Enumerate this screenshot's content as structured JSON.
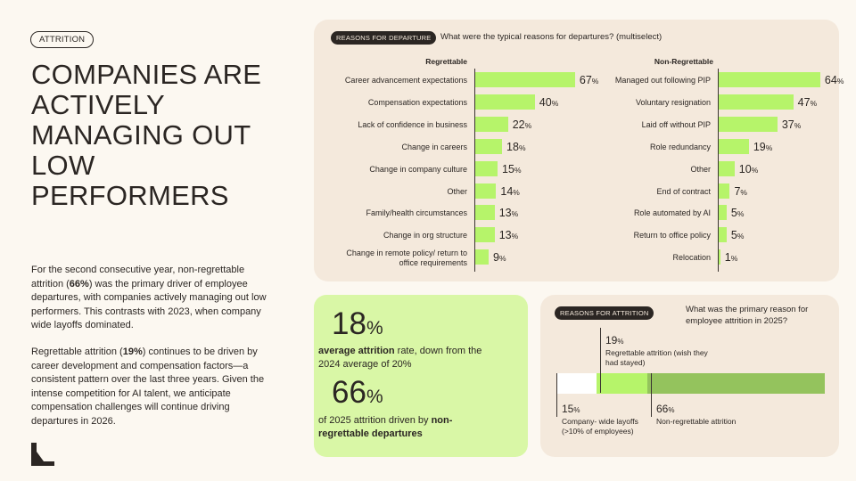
{
  "tag": "ATTRITION",
  "headline": "COMPANIES ARE ACTIVELY MANAGING OUT LOW PERFORMERS",
  "body": {
    "p1_a": "For the second consecutive year, non-regrettable attrition (",
    "p1_bold": "66%",
    "p1_b": ") was the primary driver of employee departures, with companies actively managing out low performers. This contrasts with 2023, when company wide layoffs dominated.",
    "p2_a": "Regrettable attrition (",
    "p2_bold": "19%",
    "p2_b": ") continues to be driven by career development and compensation factors—a consistent pattern over the last three years. Given the intense competition for AI talent, we anticipate compensation challenges will continue driving departures in 2026."
  },
  "departures": {
    "pill": "REASONS FOR DEPARTURE",
    "question": "What were the typical reasons for departures? (multiselect)"
  },
  "chart_data": [
    {
      "type": "bar",
      "orientation": "horizontal",
      "title": "Regrettable",
      "unit": "%",
      "categories": [
        "Career advancement expectations",
        "Compensation expectations",
        "Lack of confidence in business",
        "Change in careers",
        "Change in company culture",
        "Other",
        "Family/health circumstances",
        "Change in org structure",
        "Change in remote policy/ return to office requirements"
      ],
      "values": [
        67,
        40,
        22,
        18,
        15,
        14,
        13,
        13,
        9
      ]
    },
    {
      "type": "bar",
      "orientation": "horizontal",
      "title": "Non-Regrettable",
      "unit": "%",
      "categories": [
        "Managed out following PIP",
        "Voluntary resignation",
        "Laid off without PIP",
        "Role redundancy",
        "Other",
        "End of contract",
        "Role automated by AI",
        "Return to office policy",
        "Relocation"
      ],
      "values": [
        64,
        47,
        37,
        19,
        10,
        7,
        5,
        5,
        1
      ]
    },
    {
      "type": "bar",
      "orientation": "horizontal",
      "stacked": true,
      "title": "What was the primary reason for employee attrition in 2025?",
      "unit": "%",
      "series": [
        {
          "name": "Company- wide layoffs (>10% of employees)",
          "value": 15,
          "color": "#FFFFFF"
        },
        {
          "name": "Regrettable attrition (wish they had stayed)",
          "value": 19,
          "color": "#B6F46A"
        },
        {
          "name": "Non-regrettable attrition",
          "value": 66,
          "color": "#94C35D"
        }
      ]
    }
  ],
  "stats": {
    "s1_value": "18",
    "s1_unit": "%",
    "s1_bold": "average attrition",
    "s1_text": " rate, down from the 2024 average of 20%",
    "s2_value": "66",
    "s2_unit": "%",
    "s2_text": "of 2025 attrition driven by ",
    "s2_bold": "non-regrettable departures"
  },
  "attrition": {
    "pill": "REASONS FOR ATTRITION",
    "question": "What was the primary reason for employee attrition in 2025?",
    "labels": [
      {
        "pct": "19",
        "unit": "%",
        "text": "Regrettable attrition (wish they had stayed)"
      },
      {
        "pct": "15",
        "unit": "%",
        "text": "Company- wide layoffs (>10% of employees)"
      },
      {
        "pct": "66",
        "unit": "%",
        "text": "Non-regrettable attrition"
      }
    ]
  },
  "colors": {
    "bar": "#B6F46A",
    "bar_dark": "#94C35D",
    "panel": "#F4E9DC",
    "stat_panel": "#D9F7A6",
    "text": "#2b2623"
  }
}
